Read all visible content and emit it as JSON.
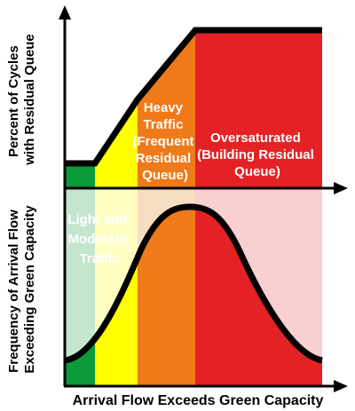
{
  "top_chart": {
    "y_axis_label_lines": [
      "Percent of Cycles",
      "with Residual Queue"
    ]
  },
  "bottom_chart": {
    "y_axis_label_lines": [
      "Frequency of Arrival Flow",
      "Exceeding Green Capacity"
    ]
  },
  "x_axis_label": "Arrival Flow Exceeds Green Capacity",
  "zones": [
    {
      "id": "light",
      "label_lines": [
        "Light and",
        "Moderate",
        "Traffic"
      ],
      "color_top_left": "#0a9a3a",
      "color_top_right": "#ffff00",
      "color_bottom_left": "#c4e6cf",
      "color_bottom_right": "#ffffc4"
    },
    {
      "id": "heavy",
      "label_lines": [
        "Heavy",
        "Traffic",
        "(Frequent",
        "Residual",
        "Queue)"
      ],
      "color_top": "#ef7a1a",
      "color_bottom": "#f7ddc2"
    },
    {
      "id": "oversaturated",
      "label_lines": [
        "Oversaturated",
        "(Building Residual",
        "Queue)"
      ],
      "color_top": "#e42226",
      "color_bottom": "#f8d0d0"
    }
  ],
  "colors": {
    "green": "#0a9a3a",
    "yellow": "#ffff00",
    "orange": "#ef7a1a",
    "red": "#e42226",
    "text_on_dark": "#ffffff",
    "axis": "#000000"
  }
}
